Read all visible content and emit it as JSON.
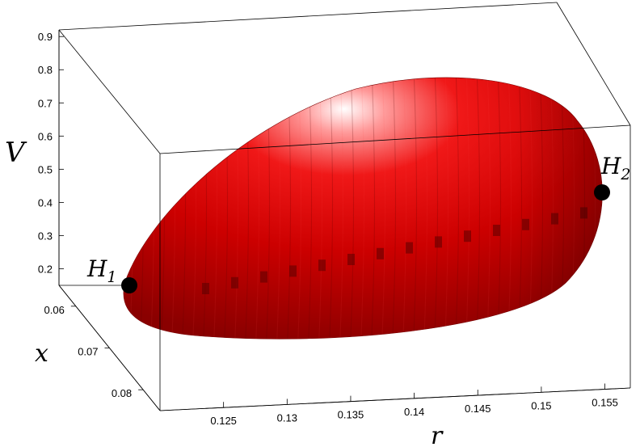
{
  "chart_data": {
    "type": "surface-3d",
    "title": "",
    "surface": {
      "shape": "closed-ellipsoid",
      "color": "#e00000"
    },
    "axes": {
      "V": {
        "label": "V",
        "ticks": [
          "0.2",
          "0.3",
          "0.4",
          "0.5",
          "0.6",
          "0.7",
          "0.8",
          "0.9"
        ],
        "range": [
          0.15,
          0.92
        ]
      },
      "x": {
        "label": "x",
        "ticks": [
          "0.06",
          "0.07",
          "0.08"
        ],
        "range": [
          0.055,
          0.085
        ]
      },
      "r": {
        "label": "r",
        "ticks": [
          "0.125",
          "0.13",
          "0.135",
          "0.14",
          "0.145",
          "0.15",
          "0.155"
        ],
        "range": [
          0.12,
          0.157
        ]
      }
    },
    "points": [
      {
        "name": "H_1",
        "label_main": "H",
        "label_sub": "1",
        "color": "#000000"
      },
      {
        "name": "H_2",
        "label_main": "H",
        "label_sub": "2",
        "color": "#000000"
      }
    ]
  }
}
